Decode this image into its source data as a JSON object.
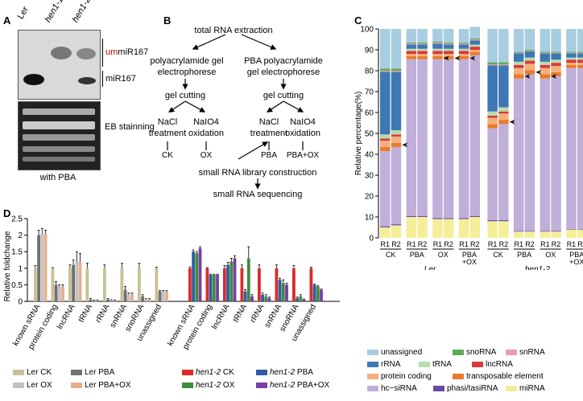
{
  "panelA": {
    "label": "A",
    "lanes": [
      "Ler",
      "hen1-1",
      "hen1-2"
    ],
    "um_prefix": "um",
    "um_rest": "miR167",
    "mir_label": "miR167",
    "eb_label": "EB stainning",
    "caption": "with PBA",
    "colors": {
      "um": "#c00000"
    }
  },
  "panelB": {
    "label": "B",
    "n_total": "total RNA extraction",
    "n_left1": "polyacrylamide gel",
    "n_left2": "electrophorese",
    "n_right1": "PBA polyacrylamide",
    "n_right2": "gel electrophorese",
    "n_cut_l": "gel cutting",
    "n_cut_r": "gel cutting",
    "n_nacl_l1": "NaCl",
    "n_nacl_l2": "treatment",
    "n_naio_l1": "NaIO4",
    "n_naio_l2": "oxidation",
    "n_nacl_r1": "NaCl",
    "n_nacl_r2": "treatment",
    "n_naio_r1": "NaIO4",
    "n_naio_r2": "oxidation",
    "n_ck": "CK",
    "n_ox": "OX",
    "n_pba": "PBA",
    "n_pbaox": "PBA+OX",
    "n_lib": "small RNA library construction",
    "n_seq": "small RNA sequencing"
  },
  "panelC": {
    "label": "C",
    "ylabel": "Relative percentage(%)",
    "yticks": [
      "0",
      "10",
      "20",
      "30",
      "40",
      "50",
      "60",
      "70",
      "80",
      "90",
      "100"
    ],
    "group_labels": [
      "CK",
      "PBA",
      "OX",
      "PBA\n+OX",
      "CK",
      "PBA",
      "OX",
      "PBA\n+OX"
    ],
    "group_ck": "CK",
    "group_pba": "PBA",
    "group_ox": "OX",
    "group_pbaox1": "PBA",
    "group_pbaox2": "+OX",
    "group_ck2": "CK",
    "group_pba2": "PBA",
    "group_ox2": "OX",
    "group_pbaox3": "PBA",
    "group_pbaox4": "+OX",
    "genotype_ler": "Ler",
    "genotype_hen": "hen1-2",
    "rep1": "R1",
    "rep2": "R2",
    "legend": {
      "unassigned": "unassigned",
      "snoRNA": "snoRNA",
      "snRNA": "snRNA",
      "rRNA": "rRNA",
      "tRNA": "tRNA",
      "lncRNA": "lncRNA",
      "protein_coding": "protein coding",
      "te": "transposable element",
      "hc_sirna": "hc−siRNA",
      "phasi": "phasi/tasiRNA",
      "mirna": "miRNA"
    },
    "colors": {
      "unassigned": "#a8cce0",
      "snoRNA": "#5dab5a",
      "snRNA": "#e7a0a6",
      "rRNA": "#3d78b4",
      "tRNA": "#b8dcae",
      "lncRNA": "#d83a3a",
      "protein_coding": "#f4b07c",
      "te": "#ea7b28",
      "hc_sirna": "#c0afd8",
      "phasi": "#6a4aa0",
      "mirna": "#f4ee98"
    }
  },
  "chart_data": [
    {
      "type": "bar",
      "stacked": true,
      "title": "",
      "ylabel": "Relative percentage(%)",
      "ylim": [
        0,
        100
      ],
      "categories": [
        "Ler CK R1",
        "Ler CK R2",
        "Ler PBA R1",
        "Ler PBA R2",
        "Ler OX R1",
        "Ler OX R2",
        "Ler PBA+OX R1",
        "Ler PBA+OX R2",
        "hen1-2 CK R1",
        "hen1-2 CK R2",
        "hen1-2 PBA R1",
        "hen1-2 PBA R2",
        "hen1-2 OX R1",
        "hen1-2 OX R2",
        "hen1-2 PBA+OX R1",
        "hen1-2 PBA+OX R2"
      ],
      "series_order": [
        "miRNA",
        "phasi/tasiRNA",
        "hc-siRNA",
        "transposable element",
        "protein coding",
        "lncRNA",
        "tRNA",
        "rRNA",
        "snRNA",
        "snoRNA",
        "unassigned"
      ],
      "series": [
        {
          "name": "miRNA",
          "values": [
            5,
            6,
            10,
            10,
            9,
            9,
            9,
            10,
            8,
            8,
            3,
            3,
            3,
            3,
            4,
            4
          ]
        },
        {
          "name": "phasi/tasiRNA",
          "values": [
            0.5,
            0.5,
            0.5,
            0.5,
            0.5,
            0.5,
            0.5,
            0.5,
            0.5,
            0.5,
            0.3,
            0.3,
            0.3,
            0.3,
            0.3,
            0.3
          ]
        },
        {
          "name": "hc-siRNA",
          "values": [
            36,
            37,
            75,
            75,
            76,
            76,
            76,
            77,
            44,
            46,
            73,
            75,
            73,
            74,
            77,
            77
          ]
        },
        {
          "name": "transposable element",
          "values": [
            2,
            2,
            1.5,
            1.5,
            1.5,
            1.5,
            1.5,
            1.5,
            2,
            2,
            2,
            2,
            2,
            2,
            1.5,
            1.5
          ]
        },
        {
          "name": "protein coding",
          "values": [
            3,
            3,
            1,
            1,
            1,
            1,
            1,
            1,
            3,
            3,
            3,
            3,
            3,
            3,
            1,
            1
          ]
        },
        {
          "name": "lncRNA",
          "values": [
            1,
            1,
            1.5,
            1.5,
            1.5,
            1.5,
            1.5,
            1.5,
            1,
            1,
            1.5,
            1.5,
            1.5,
            1.5,
            1.5,
            1.5
          ]
        },
        {
          "name": "tRNA",
          "values": [
            2,
            2,
            1,
            1,
            1,
            1,
            1,
            1,
            2,
            2,
            1.5,
            1.5,
            1.5,
            1.5,
            1,
            1
          ]
        },
        {
          "name": "rRNA",
          "values": [
            30,
            28,
            2,
            2,
            2.5,
            2,
            2,
            2,
            22,
            20,
            4,
            3,
            4,
            3,
            2,
            2
          ]
        },
        {
          "name": "snRNA",
          "values": [
            0.5,
            0.5,
            0.5,
            0.5,
            0.5,
            0.5,
            0.5,
            0.5,
            0.5,
            0.5,
            0.3,
            0.3,
            0.3,
            0.3,
            0.3,
            0.3
          ]
        },
        {
          "name": "snoRNA",
          "values": [
            1,
            1,
            0.5,
            0.5,
            0.5,
            0.5,
            0.5,
            0.5,
            1,
            1,
            0.5,
            0.5,
            0.5,
            0.5,
            0.5,
            0.5
          ]
        },
        {
          "name": "unassigned",
          "values": [
            19,
            19,
            6.5,
            6.5,
            6,
            6.5,
            6.5,
            5.5,
            16,
            16,
            10.9,
            9.9,
            10.9,
            10.9,
            10.9,
            10.9
          ]
        }
      ]
    },
    {
      "type": "bar",
      "title": "",
      "ylabel": "Relative foldchange",
      "ylim": [
        0,
        2.5
      ],
      "yticks": [
        "0",
        "0.5",
        "1",
        "1.5",
        "2",
        "2.5"
      ],
      "categories": [
        "known sRNA",
        "protein coding",
        "lncRNA",
        "tRNA",
        "rRNA",
        "snRNA",
        "snoRNA",
        "unassigned",
        "known sRNA",
        "protein coding",
        "lncRNA",
        "tRNA",
        "rRNA",
        "snRNA",
        "snoRNA",
        "unassigned"
      ],
      "series": [
        {
          "name": "Ler CK",
          "values": [
            1,
            1,
            1,
            1,
            1,
            1,
            1,
            1,
            null,
            null,
            null,
            null,
            null,
            null,
            null,
            null
          ],
          "err": [
            0.08,
            0.02,
            0.1,
            0.15,
            0.1,
            0.15,
            0.15,
            0.03,
            null,
            null,
            null,
            null,
            null,
            null,
            null,
            null
          ]
        },
        {
          "name": "Ler PBA",
          "values": [
            2,
            0.5,
            1.1,
            0.05,
            0.05,
            0.35,
            0.15,
            0.3,
            null,
            null,
            null,
            null,
            null,
            null,
            null,
            null
          ],
          "err": [
            0.15,
            0.1,
            0.15,
            0.04,
            0.03,
            0.1,
            0.05,
            0.03,
            null,
            null,
            null,
            null,
            null,
            null,
            null,
            null
          ]
        },
        {
          "name": "Ler OX",
          "values": [
            2.05,
            0.45,
            1.2,
            0.02,
            0.03,
            0.2,
            0.05,
            0.3,
            null,
            null,
            null,
            null,
            null,
            null,
            null,
            null
          ],
          "err": [
            0.15,
            0.05,
            0.3,
            0.02,
            0.02,
            0.05,
            0.03,
            0.03,
            null,
            null,
            null,
            null,
            null,
            null,
            null,
            null
          ]
        },
        {
          "name": "Ler PBA+OX",
          "values": [
            2.05,
            0.45,
            1.2,
            0.02,
            0.02,
            0.2,
            0.05,
            0.3,
            null,
            null,
            null,
            null,
            null,
            null,
            null,
            null
          ],
          "err": [
            0.1,
            0.05,
            0.25,
            0.02,
            0.02,
            0.05,
            0.03,
            0.02,
            null,
            null,
            null,
            null,
            null,
            null,
            null,
            null
          ]
        },
        {
          "name": "hen1-2 CK",
          "values": [
            null,
            null,
            null,
            null,
            null,
            null,
            null,
            null,
            1,
            1,
            1,
            1,
            1,
            1,
            1,
            1
          ],
          "err": [
            null,
            null,
            null,
            null,
            null,
            null,
            null,
            null,
            0.04,
            0.02,
            0.08,
            0.1,
            0.1,
            0.1,
            0.08,
            0.03
          ]
        },
        {
          "name": "hen1-2 PBA",
          "values": [
            null,
            null,
            null,
            null,
            null,
            null,
            null,
            null,
            1.5,
            0.8,
            1.1,
            0.3,
            0.2,
            0.65,
            0.1,
            0.5
          ],
          "err": [
            null,
            null,
            null,
            null,
            null,
            null,
            null,
            null,
            0.05,
            0.02,
            0.08,
            0.05,
            0.05,
            0.05,
            0.03,
            0.02
          ]
        },
        {
          "name": "hen1-2 OX",
          "values": [
            null,
            null,
            null,
            null,
            null,
            null,
            null,
            null,
            1.45,
            0.8,
            1.2,
            1.3,
            0.15,
            0.55,
            0.15,
            0.45
          ],
          "err": [
            null,
            null,
            null,
            null,
            null,
            null,
            null,
            null,
            0.05,
            0.02,
            0.1,
            0.35,
            0.05,
            0.1,
            0.05,
            0.02
          ]
        },
        {
          "name": "hen1-2 PBA+OX",
          "values": [
            null,
            null,
            null,
            null,
            null,
            null,
            null,
            null,
            1.6,
            0.8,
            1.3,
            0.15,
            0.1,
            0.5,
            0.05,
            0.35
          ],
          "err": [
            null,
            null,
            null,
            null,
            null,
            null,
            null,
            null,
            0.05,
            0.02,
            0.08,
            0.05,
            0.03,
            0.05,
            0.02,
            0.02
          ]
        }
      ]
    }
  ],
  "panelD": {
    "label": "D",
    "ylabel": "Relative foldchange",
    "yticks": [
      "0",
      "0.5",
      "1",
      "1.5",
      "2",
      "2.5"
    ],
    "cats": [
      "known sRNA",
      "protein coding",
      "lncRNA",
      "tRNA",
      "rRNA",
      "snRNA",
      "snoRNA",
      "unassigned"
    ],
    "legend": {
      "ler_ck": "Ler CK",
      "ler_pba": "Ler PBA",
      "ler_ox": "Ler OX",
      "ler_pbaox": "Ler PBA+OX",
      "hen_ck_g": "hen1-2",
      "hen_ck_s": " CK",
      "hen_pba_g": "hen1-2",
      "hen_pba_s": " PBA",
      "hen_ox_g": "hen1-2",
      "hen_ox_s": " OX",
      "hen_pbaox_g": "hen1-2",
      "hen_pbaox_s": " PBA+OX"
    },
    "colors": {
      "ler_ck": "#c9bf94",
      "ler_pba": "#707070",
      "ler_ox": "#c2c2c2",
      "ler_pbaox": "#e6ae8a",
      "hen_ck": "#dd2a2a",
      "hen_pba": "#2e5da8",
      "hen_ox": "#3f8c3a",
      "hen_pbaox": "#7a3ea4"
    }
  }
}
